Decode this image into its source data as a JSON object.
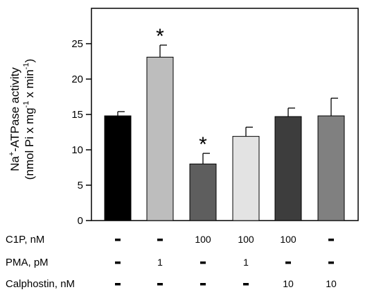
{
  "chart_data": {
    "type": "bar",
    "ylabel_line1": "Na",
    "ylabel_sup1": "+",
    "ylabel_line1_rest": "-ATPase activity",
    "ylabel_line2_a": "(nmol Pi x mg",
    "ylabel_sup2": "-1",
    "ylabel_line2_b": " x min",
    "ylabel_sup3": "-1",
    "ylabel_line2_c": ")",
    "ylim": [
      0,
      30
    ],
    "yticks": [
      0,
      5,
      10,
      15,
      20,
      25
    ],
    "bars": [
      {
        "value": 14.8,
        "error": 0.6,
        "color": "#000000",
        "significant": false
      },
      {
        "value": 23.1,
        "error": 1.7,
        "color": "#bdbdbd",
        "significant": true
      },
      {
        "value": 8.0,
        "error": 1.5,
        "color": "#5e5e5e",
        "significant": true
      },
      {
        "value": 11.9,
        "error": 1.3,
        "color": "#e3e3e3",
        "significant": false
      },
      {
        "value": 14.7,
        "error": 1.2,
        "color": "#3d3d3d",
        "significant": false
      },
      {
        "value": 14.8,
        "error": 2.5,
        "color": "#808080",
        "significant": false
      }
    ],
    "significance_marker": "*",
    "conditions": [
      {
        "label": "C1P, nM",
        "values": [
          "-",
          "-",
          "100",
          "100",
          "100",
          "-"
        ]
      },
      {
        "label": "PMA, pM",
        "values": [
          "-",
          "1",
          "-",
          "1",
          "-",
          "-"
        ]
      },
      {
        "label": "Calphostin, nM",
        "values": [
          "-",
          "-",
          "-",
          "-",
          "10",
          "10"
        ]
      }
    ]
  }
}
